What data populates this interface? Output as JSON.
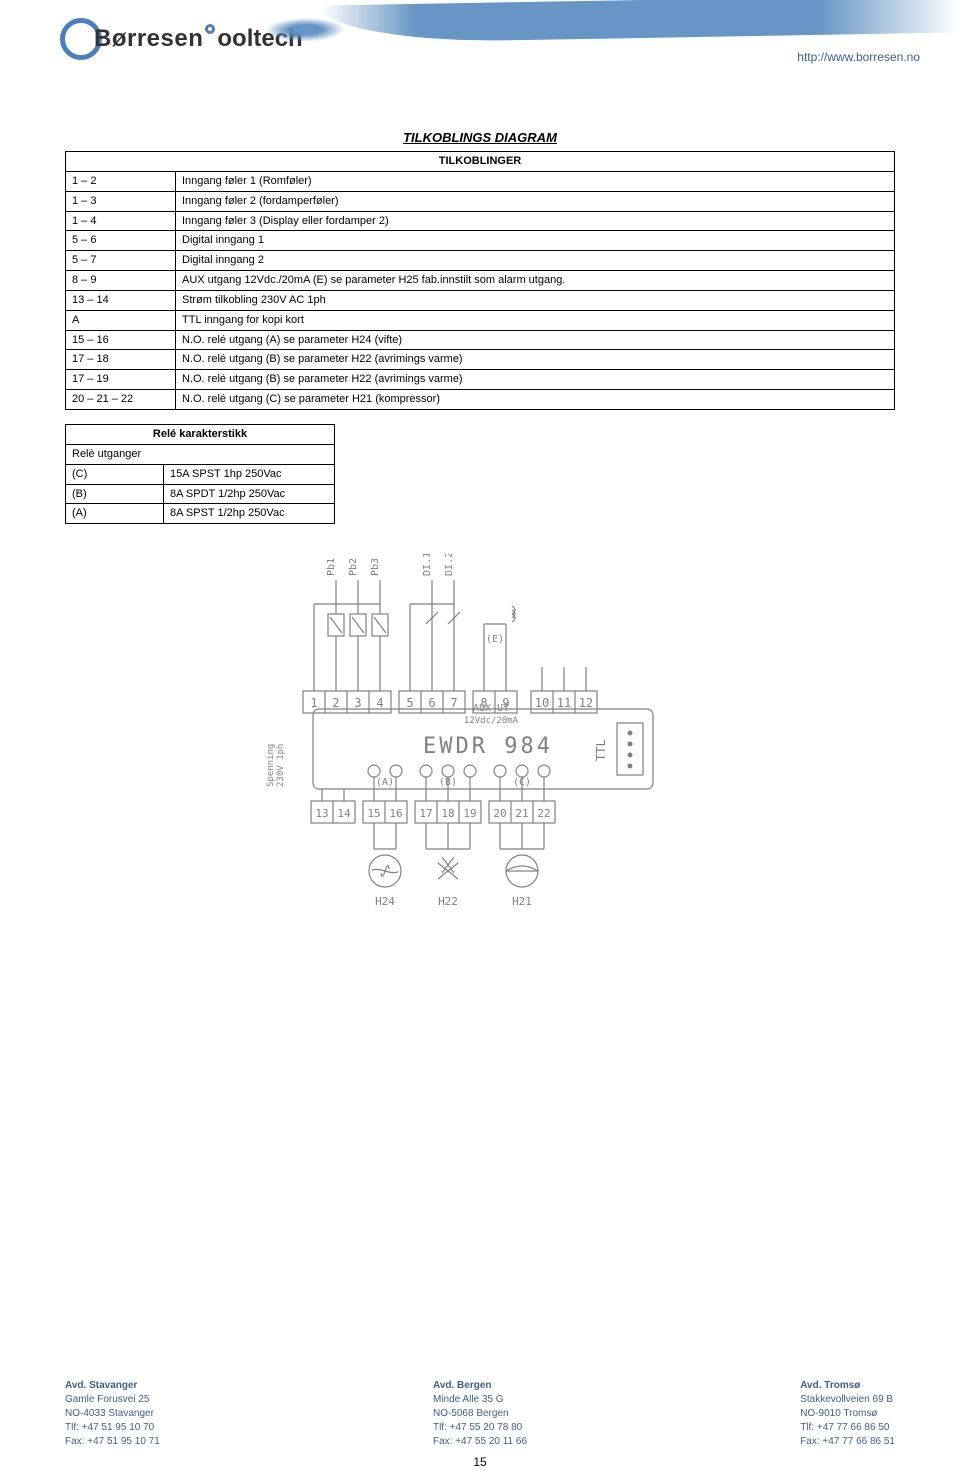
{
  "header": {
    "logo_first": "Børresen",
    "logo_second": "ooltech",
    "url": "http://www.borresen.no"
  },
  "title": "TILKOBLINGS DIAGRAM",
  "conn_table": {
    "header": "TILKOBLINGER",
    "rows": [
      {
        "pins": "1 – 2",
        "desc": "Inngang føler 1 (Romføler)"
      },
      {
        "pins": "1 – 3",
        "desc": "Inngang føler 2 (fordamperføler)"
      },
      {
        "pins": "1 – 4",
        "desc": "Inngang føler 3 (Display eller fordamper 2)"
      },
      {
        "pins": "5 – 6",
        "desc": "Digital inngang 1"
      },
      {
        "pins": "5 – 7",
        "desc": "Digital inngang 2"
      },
      {
        "pins": "8 – 9",
        "desc": "AUX utgang 12Vdc./20mA (E) se parameter H25 fab.innstilt som alarm utgang."
      },
      {
        "pins": "13 – 14",
        "desc": "Strøm tilkobling 230V AC 1ph"
      },
      {
        "pins": "A",
        "desc": "TTL inngang for kopi kort"
      },
      {
        "pins": "15 – 16",
        "desc": "N.O. relé utgang (A) se parameter H24 (vifte)"
      },
      {
        "pins": "17 – 18",
        "desc": "N.O. relé utgang (B) se parameter H22 (avrimings varme)"
      },
      {
        "pins": "17 – 19",
        "desc": "N.O. relé utgang (B) se parameter H22 (avrimings varme)"
      },
      {
        "pins": "20 – 21 – 22",
        "desc": "N.O. relé utgang (C) se parameter H21 (kompressor)"
      }
    ]
  },
  "relay": {
    "header": "Relé karakterstikk",
    "subhead": "Relè utganger",
    "rows": [
      {
        "k": "(C)",
        "v": "15A SPST 1hp 250Vac"
      },
      {
        "k": "(B)",
        "v": "8A SPDT 1/2hp 250Vac"
      },
      {
        "k": "(A)",
        "v": "8A SPST 1/2hp 250Vac"
      }
    ]
  },
  "diagram": {
    "model": "EWDR 984",
    "aux_label": "AUX UT",
    "aux_sub": "12Vdc/20mA",
    "ttl": "TTL",
    "pb": [
      "Pb1",
      "Pb2",
      "Pb3"
    ],
    "di": [
      "DI.1",
      "DI.2"
    ],
    "e_label": "(E)",
    "top_terms": [
      "1",
      "2",
      "3",
      "4",
      "5",
      "6",
      "7",
      "8",
      "9",
      "10",
      "11",
      "12"
    ],
    "bot_terms": [
      "13",
      "14",
      "15",
      "16",
      "17",
      "18",
      "19",
      "20",
      "21",
      "22"
    ],
    "out_a": "(A)",
    "out_b": "(B)",
    "out_c": "(C)",
    "h24": "H24",
    "h22": "H22",
    "h21": "H21",
    "spen": "Spenning\n230V 1ph",
    "colors": {
      "stroke": "#808080",
      "black": "#000000"
    }
  },
  "footer": {
    "cols": [
      {
        "head": "Avd. Stavanger",
        "l1": "Gamle Forusvei 25",
        "l2": "NO-4033 Stavanger",
        "l3": "Tlf: +47 51 95 10 70",
        "l4": "Fax: +47 51 95 10 71"
      },
      {
        "head": "Avd. Bergen",
        "l1": "Minde Alle 35 G",
        "l2": "NO-5068 Bergen",
        "l3": "Tlf: +47 55 20 78 80",
        "l4": "Fax: +47 55 20 11 66"
      },
      {
        "head": "Avd. Tromsø",
        "l1": "Stakkevollveien 69 B",
        "l2": "NO-9010 Tromsø",
        "l3": "Tlf: +47 77 66 86 50",
        "l4": "Fax: +47 77 66 86 51"
      }
    ]
  },
  "page_number": "15"
}
